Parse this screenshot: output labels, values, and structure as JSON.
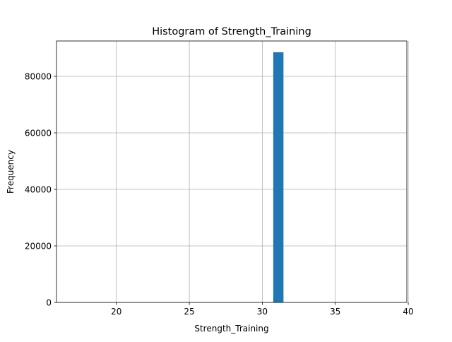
{
  "chart_data": {
    "type": "bar",
    "title": "Histogram of Strength_Training",
    "xlabel": "Strength_Training",
    "ylabel": "Frequency",
    "xlim": [
      15.9,
      39.9
    ],
    "ylim": [
      0,
      92500
    ],
    "xticks": [
      20,
      25,
      30,
      35,
      40
    ],
    "yticks": [
      0,
      20000,
      40000,
      60000,
      80000
    ],
    "grid": true,
    "bins": [
      {
        "x0": 30.75,
        "x1": 31.45,
        "count": 88500
      }
    ],
    "bar_color": "#1f77b4"
  }
}
